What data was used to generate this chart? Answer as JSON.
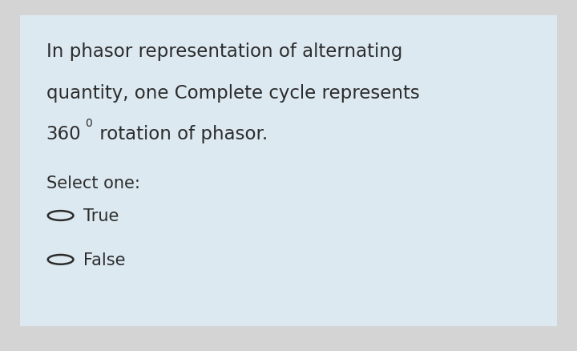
{
  "bg_outer": "#d4d4d4",
  "bg_inner": "#dce9f1",
  "text_color": "#2c2c2c",
  "line1": "In phasor representation of alternating",
  "line2": "quantity, one Complete cycle represents",
  "line3_main": "360",
  "line3_sup": "0",
  "line3_rest": " rotation of phasor.",
  "select_label": "Select one:",
  "option1": "True",
  "option2": "False",
  "font_size_main": 16.5,
  "font_size_select": 15.0,
  "font_size_option": 15.0
}
